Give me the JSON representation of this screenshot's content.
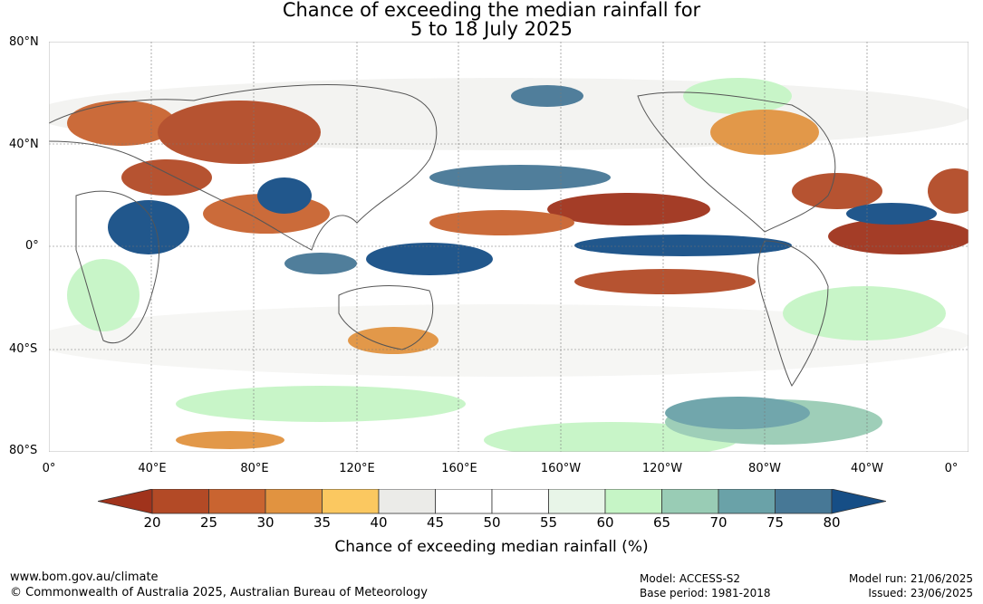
{
  "title": {
    "line1": "Chance of exceeding the median rainfall for",
    "line2": "5 to 18 July 2025"
  },
  "map": {
    "lat_labels": [
      "80°N",
      "40°N",
      "0°",
      "40°S",
      "80°S"
    ],
    "lon_labels": [
      "0°",
      "40°E",
      "80°E",
      "120°E",
      "160°E",
      "160°W",
      "120°W",
      "80°W",
      "40°W",
      "0°"
    ]
  },
  "colorbar": {
    "ticks": [
      "20",
      "25",
      "30",
      "35",
      "40",
      "45",
      "50",
      "55",
      "60",
      "65",
      "70",
      "75",
      "80"
    ],
    "colors": [
      "#a0331c",
      "#b34a26",
      "#c96430",
      "#e19340",
      "#fbc860",
      "#ebebe8",
      "#ffffff",
      "#ffffff",
      "#e8f5e8",
      "#c6f5c6",
      "#99ccb5",
      "#6aa2a8",
      "#477896",
      "#164e86"
    ],
    "title": "Chance of exceeding median rainfall (%)"
  },
  "footer": {
    "url": "www.bom.gov.au/climate",
    "copyright": "© Commonwealth of Australia 2025, Australian Bureau of Meteorology",
    "model": "Model: ACCESS-S2",
    "base_period": "Base period: 1981-2018",
    "model_run": "Model run: 21/06/2025",
    "issued": "Issued: 23/06/2025"
  }
}
